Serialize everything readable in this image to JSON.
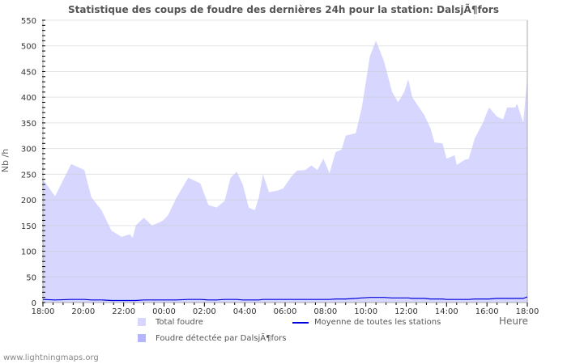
{
  "title": "Statistique des coups de foudre des dernières 24h pour la station: DalsjÃ¶fors",
  "credit": "www.lightningmaps.org",
  "colors": {
    "total": "#d6d6ff",
    "detected": "#b4b4ff",
    "average": "#0000dd",
    "grid": "#cccccc"
  },
  "legend": {
    "total": "Total foudre",
    "detected": "Foudre détectée par DalsjÃ¶fors",
    "average": "Moyenne de toutes les stations"
  },
  "chart_data": {
    "type": "area",
    "title": "Statistique des coups de foudre des dernières 24h pour la station: DalsjÃ¶fors",
    "xlabel": "Heure",
    "ylabel": "Nb /h",
    "ylim": [
      0,
      550
    ],
    "yticks": [
      0,
      50,
      100,
      150,
      200,
      250,
      300,
      350,
      400,
      450,
      500,
      550
    ],
    "xticks": [
      "18:00",
      "20:00",
      "22:00",
      "00:00",
      "02:00",
      "04:00",
      "06:00",
      "08:00",
      "10:00",
      "12:00",
      "14:00",
      "16:00",
      "18:00"
    ],
    "grid": true,
    "legend_position": "bottom",
    "x_hours_offset": [
      0,
      0.6,
      1.4,
      2.05,
      2.4,
      2.9,
      3.4,
      3.9,
      4.3,
      4.45,
      4.6,
      5.0,
      5.4,
      5.7,
      5.95,
      6.2,
      6.6,
      7.2,
      7.8,
      8.2,
      8.6,
      9.0,
      9.3,
      9.6,
      9.9,
      10.2,
      10.5,
      10.7,
      10.9,
      11.2,
      11.6,
      11.9,
      12.3,
      12.6,
      13.0,
      13.3,
      13.6,
      13.9,
      14.2,
      14.5,
      14.8,
      15.0,
      15.5,
      15.8,
      16.2,
      16.5,
      16.9,
      17.3,
      17.6,
      17.9,
      18.1,
      18.3,
      18.9,
      19.2,
      19.4,
      19.8,
      20.0,
      20.4,
      20.5,
      20.9,
      21.1,
      21.4,
      21.8,
      22.1,
      22.5,
      22.8,
      23.0,
      23.4,
      23.5,
      23.8,
      24.0
    ],
    "series": [
      {
        "name": "Total foudre",
        "values": [
          240,
          207,
          270,
          258,
          205,
          180,
          140,
          128,
          133,
          126,
          150,
          165,
          150,
          155,
          160,
          170,
          203,
          243,
          232,
          190,
          185,
          198,
          243,
          255,
          230,
          185,
          180,
          205,
          250,
          215,
          218,
          222,
          245,
          257,
          258,
          267,
          258,
          280,
          252,
          293,
          298,
          325,
          330,
          380,
          480,
          510,
          470,
          410,
          390,
          410,
          435,
          400,
          365,
          340,
          312,
          310,
          280,
          287,
          268,
          278,
          280,
          320,
          350,
          380,
          362,
          357,
          380,
          380,
          387,
          350,
          440
        ]
      },
      {
        "name": "Foudre détectée par DalsjÃ¶fors",
        "values": [
          0,
          0,
          0,
          0,
          0,
          0,
          0,
          0,
          0,
          0,
          0,
          0,
          0,
          0,
          0,
          0,
          0,
          0,
          0,
          0,
          0,
          0,
          0,
          0,
          0,
          0,
          0,
          0,
          0,
          0,
          0,
          0,
          0,
          0,
          0,
          0,
          0,
          0,
          0,
          0,
          0,
          0,
          0,
          0,
          0,
          0,
          0,
          0,
          0,
          0,
          0,
          0,
          0,
          0,
          0,
          0,
          0,
          0,
          0,
          0,
          0,
          0,
          0,
          0,
          0,
          0,
          0,
          0,
          0,
          0,
          0
        ]
      },
      {
        "name": "Moyenne de toutes les stations",
        "values": [
          6,
          5,
          6,
          6,
          5,
          5,
          4,
          4,
          4,
          4,
          4,
          5,
          5,
          5,
          5,
          5,
          5,
          6,
          6,
          5,
          5,
          6,
          6,
          6,
          5,
          5,
          5,
          5,
          6,
          6,
          6,
          6,
          6,
          6,
          6,
          6,
          6,
          6,
          6,
          7,
          7,
          7,
          8,
          9,
          10,
          10,
          10,
          9,
          9,
          9,
          9,
          8,
          8,
          7,
          7,
          7,
          6,
          6,
          6,
          6,
          6,
          7,
          7,
          7,
          8,
          8,
          8,
          8,
          8,
          8,
          11
        ]
      }
    ]
  }
}
